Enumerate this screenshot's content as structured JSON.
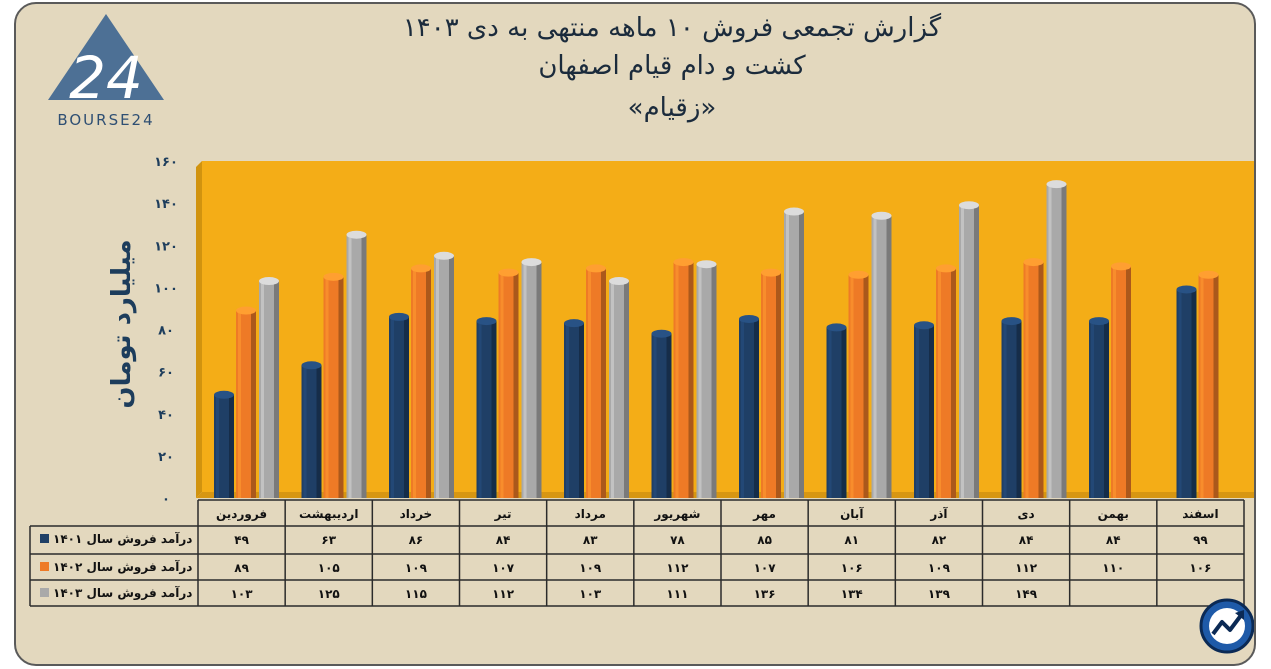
{
  "title_lines": [
    "گزارش تجمعی فروش ۱۰ ماهه منتهی به دی ۱۴۰۳",
    "کشت و دام قیام اصفهان",
    "«زقیام»"
  ],
  "logo_text": "BOURSE24",
  "logo_number": "24",
  "colors": {
    "background": "#e3d8be",
    "plot": "#f4ad17",
    "s1": "#1f3f66",
    "s2": "#ee7a26",
    "s3": "#a9a9a9",
    "ytext": "#1d3d5c"
  },
  "chart_data": {
    "type": "bar",
    "ylabel": "میلیارد تومان",
    "ylim": [
      0,
      160
    ],
    "yticks": [
      "۰",
      "۲۰",
      "۴۰",
      "۶۰",
      "۸۰",
      "۱۰۰",
      "۱۲۰",
      "۱۴۰",
      "۱۶۰"
    ],
    "categories": [
      "فروردین",
      "اردیبهشت",
      "خرداد",
      "تیر",
      "مرداد",
      "شهریور",
      "مهر",
      "آبان",
      "آذر",
      "دی",
      "بهمن",
      "اسفند"
    ],
    "series": [
      {
        "name": "درآمد فروش سال ۱۴۰۱",
        "color": "#1f3f66",
        "values": [
          49,
          63,
          86,
          84,
          83,
          78,
          85,
          81,
          82,
          84,
          84,
          99
        ],
        "labels": [
          "۴۹",
          "۶۳",
          "۸۶",
          "۸۴",
          "۸۳",
          "۷۸",
          "۸۵",
          "۸۱",
          "۸۲",
          "۸۴",
          "۸۴",
          "۹۹"
        ]
      },
      {
        "name": "درآمد فروش سال ۱۴۰۲",
        "color": "#ee7a26",
        "values": [
          89,
          105,
          109,
          107,
          109,
          112,
          107,
          106,
          109,
          112,
          110,
          106
        ],
        "labels": [
          "۸۹",
          "۱۰۵",
          "۱۰۹",
          "۱۰۷",
          "۱۰۹",
          "۱۱۲",
          "۱۰۷",
          "۱۰۶",
          "۱۰۹",
          "۱۱۲",
          "۱۱۰",
          "۱۰۶"
        ]
      },
      {
        "name": "درآمد فروش سال ۱۴۰۳",
        "color": "#a9a9a9",
        "values": [
          103,
          125,
          115,
          112,
          103,
          111,
          136,
          134,
          139,
          149,
          null,
          null
        ],
        "labels": [
          "۱۰۳",
          "۱۲۵",
          "۱۱۵",
          "۱۱۲",
          "۱۰۳",
          "۱۱۱",
          "۱۳۶",
          "۱۳۴",
          "۱۳۹",
          "۱۴۹",
          "",
          ""
        ]
      }
    ],
    "grid": false,
    "legend": "table-left"
  }
}
